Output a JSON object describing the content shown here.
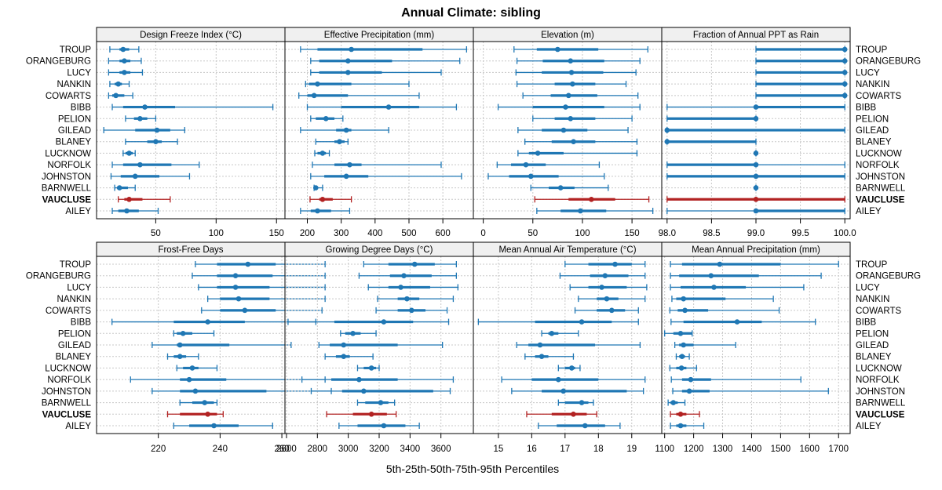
{
  "chart_data": {
    "type": "percentile-dotplot",
    "title": "Annual Climate: sibling",
    "xlabel": "5th-25th-50th-75th-95th Percentiles",
    "grid": true,
    "colors": {
      "default": "#1f77b4",
      "highlight": "#b22222",
      "strip_bg": "#f0f0f0"
    },
    "highlight_series": "VAUCLUSE",
    "series": [
      "TROUP",
      "ORANGEBURG",
      "LUCY",
      "NANKIN",
      "COWARTS",
      "BIBB",
      "PELION",
      "GILEAD",
      "BLANEY",
      "LUCKNOW",
      "NORFOLK",
      "JOHNSTON",
      "BARNWELL",
      "VAUCLUSE",
      "AILEY"
    ],
    "panels": [
      {
        "title": "Design Freeze Index (°C)",
        "row": "top",
        "col": 1,
        "xlim": [
          1,
          157
        ],
        "ticks": [
          50,
          100,
          150
        ],
        "values": [
          [
            12,
            20,
            23,
            28,
            36
          ],
          [
            11,
            20,
            24,
            29,
            38
          ],
          [
            11,
            20,
            24,
            29,
            39
          ],
          [
            12,
            16,
            19,
            22,
            28
          ],
          [
            11,
            14,
            17,
            24,
            31
          ],
          [
            14,
            23,
            41,
            66,
            147
          ],
          [
            25,
            32,
            37,
            43,
            50
          ],
          [
            7,
            33,
            51,
            62,
            74
          ],
          [
            25,
            43,
            50,
            55,
            68
          ],
          [
            23,
            25,
            28,
            31,
            33
          ],
          [
            14,
            23,
            37,
            63,
            86
          ],
          [
            13,
            21,
            33,
            53,
            78
          ],
          [
            16,
            18,
            20,
            27,
            33
          ],
          [
            19,
            24,
            28,
            39,
            62
          ],
          [
            14,
            19,
            26,
            36,
            52
          ]
        ]
      },
      {
        "title": "Effective Precipitation (mm)",
        "row": "top",
        "col": 2,
        "xlim": [
          134,
          690
        ],
        "ticks": [
          200,
          300,
          400,
          500,
          600
        ],
        "values": [
          [
            180,
            230,
            330,
            540,
            670
          ],
          [
            210,
            235,
            320,
            450,
            650
          ],
          [
            210,
            235,
            320,
            420,
            595
          ],
          [
            195,
            205,
            230,
            330,
            500
          ],
          [
            175,
            200,
            220,
            320,
            530
          ],
          [
            200,
            300,
            440,
            530,
            640
          ],
          [
            210,
            225,
            255,
            280,
            305
          ],
          [
            180,
            285,
            315,
            330,
            440
          ],
          [
            225,
            280,
            295,
            310,
            320
          ],
          [
            222,
            230,
            245,
            255,
            265
          ],
          [
            215,
            280,
            325,
            360,
            595
          ],
          [
            210,
            250,
            315,
            380,
            655
          ],
          [
            220,
            222,
            225,
            230,
            245
          ],
          [
            208,
            235,
            245,
            275,
            330
          ],
          [
            180,
            210,
            230,
            270,
            325
          ]
        ]
      },
      {
        "title": "Elevation (m)",
        "row": "top",
        "col": 3,
        "xlim": [
          -10,
          180
        ],
        "ticks": [
          0,
          50,
          100,
          150
        ],
        "values": [
          [
            31,
            54,
            75,
            116,
            166
          ],
          [
            34,
            60,
            88,
            122,
            158
          ],
          [
            33,
            59,
            89,
            121,
            154
          ],
          [
            34,
            72,
            90,
            113,
            144
          ],
          [
            40,
            68,
            86,
            115,
            156
          ],
          [
            15,
            50,
            83,
            122,
            158
          ],
          [
            50,
            72,
            88,
            113,
            150
          ],
          [
            35,
            59,
            81,
            105,
            146
          ],
          [
            42,
            69,
            91,
            113,
            155
          ],
          [
            35,
            46,
            55,
            81,
            155
          ],
          [
            14,
            28,
            43,
            63,
            117
          ],
          [
            5,
            26,
            48,
            76,
            122
          ],
          [
            48,
            66,
            78,
            92,
            126
          ],
          [
            52,
            86,
            109,
            133,
            167
          ],
          [
            54,
            78,
            98,
            124,
            171
          ]
        ]
      },
      {
        "title": "Fraction of Annual PPT as Rain",
        "row": "top",
        "col": 4,
        "xlim": [
          97.94,
          100.06
        ],
        "ticks": [
          98.0,
          98.5,
          99.0,
          99.5,
          100.0
        ],
        "values": [
          [
            99,
            99,
            100,
            100,
            100
          ],
          [
            99,
            99,
            100,
            100,
            100
          ],
          [
            99,
            99,
            100,
            100,
            100
          ],
          [
            99,
            99,
            100,
            100,
            100
          ],
          [
            99,
            99,
            100,
            100,
            100
          ],
          [
            98,
            99,
            99,
            100,
            100
          ],
          [
            98,
            98,
            99,
            99,
            99
          ],
          [
            98,
            98,
            98,
            100,
            100
          ],
          [
            98,
            98,
            98,
            99,
            99
          ],
          [
            99,
            99,
            99,
            99,
            99
          ],
          [
            98,
            98,
            99,
            99,
            100
          ],
          [
            98,
            98,
            99,
            100,
            100
          ],
          [
            99,
            99,
            99,
            99,
            99
          ],
          [
            98,
            98,
            99,
            100,
            100
          ],
          [
            98,
            99,
            99,
            100,
            100
          ]
        ]
      },
      {
        "title": "Frost-Free Days",
        "row": "bottom",
        "col": 1,
        "xlim": [
          200,
          261
        ],
        "ticks": [
          220,
          240,
          260
        ],
        "values": [
          [
            232,
            239,
            249,
            258,
            274
          ],
          [
            231,
            239,
            245,
            257,
            274
          ],
          [
            233,
            239,
            245,
            256,
            274
          ],
          [
            236,
            240,
            246,
            256,
            274
          ],
          [
            234,
            240,
            248,
            258,
            273
          ],
          [
            205,
            225,
            236,
            248,
            271
          ],
          [
            225,
            226,
            228,
            231,
            238
          ],
          [
            218,
            226,
            227,
            243,
            263
          ],
          [
            223,
            225,
            227,
            229,
            233
          ],
          [
            226,
            228,
            231,
            233,
            239
          ],
          [
            211,
            227,
            230,
            242,
            274
          ],
          [
            218,
            227,
            232,
            255,
            276
          ],
          [
            227,
            231,
            235,
            238,
            239
          ],
          [
            223,
            227,
            236,
            239,
            241
          ],
          [
            225,
            230,
            238,
            246,
            257
          ]
        ]
      },
      {
        "title": "Growing Degree Days (°C)",
        "row": "bottom",
        "col": 2,
        "xlim": [
          2590,
          3810
        ],
        "ticks": [
          2600,
          2800,
          3000,
          3200,
          3400,
          3600
        ],
        "values": [
          [
            3100,
            3260,
            3430,
            3560,
            3700
          ],
          [
            3070,
            3270,
            3360,
            3540,
            3700
          ],
          [
            3130,
            3260,
            3340,
            3530,
            3710
          ],
          [
            3190,
            3320,
            3380,
            3460,
            3680
          ],
          [
            3180,
            3320,
            3410,
            3500,
            3640
          ],
          [
            2610,
            2910,
            3230,
            3420,
            3650
          ],
          [
            2950,
            2980,
            3030,
            3080,
            3180
          ],
          [
            2810,
            2880,
            2970,
            3320,
            3610
          ],
          [
            2850,
            2920,
            2970,
            3010,
            3160
          ],
          [
            3060,
            3100,
            3150,
            3180,
            3200
          ],
          [
            2700,
            2890,
            3070,
            3320,
            3680
          ],
          [
            2760,
            2960,
            3100,
            3550,
            3660
          ],
          [
            3060,
            3110,
            3210,
            3260,
            3300
          ],
          [
            2860,
            3030,
            3150,
            3250,
            3310
          ],
          [
            2940,
            3060,
            3230,
            3370,
            3460
          ]
        ]
      },
      {
        "title": "Mean Annual Air Temperature (°C)",
        "row": "bottom",
        "col": 3,
        "xlim": [
          14.25,
          19.9
        ],
        "ticks": [
          15,
          16,
          17,
          18,
          19
        ],
        "values": [
          [
            17.0,
            17.7,
            18.5,
            19.0,
            19.4
          ],
          [
            16.85,
            17.75,
            18.2,
            18.9,
            19.4
          ],
          [
            17.15,
            17.7,
            18.1,
            18.85,
            19.45
          ],
          [
            17.4,
            17.95,
            18.25,
            18.6,
            19.4
          ],
          [
            17.3,
            17.95,
            18.4,
            18.8,
            19.2
          ],
          [
            14.4,
            16.1,
            17.5,
            18.4,
            19.2
          ],
          [
            16.3,
            16.5,
            16.6,
            16.8,
            17.4
          ],
          [
            15.55,
            15.9,
            16.25,
            17.9,
            19.25
          ],
          [
            15.8,
            16.1,
            16.3,
            16.5,
            17.25
          ],
          [
            16.8,
            17.0,
            17.2,
            17.3,
            17.45
          ],
          [
            15.1,
            16.0,
            16.8,
            18.0,
            19.4
          ],
          [
            15.4,
            16.3,
            16.95,
            18.85,
            19.35
          ],
          [
            16.8,
            17.0,
            17.5,
            17.7,
            17.85
          ],
          [
            15.85,
            16.6,
            17.25,
            17.65,
            17.95
          ],
          [
            16.2,
            16.75,
            17.6,
            18.2,
            18.65
          ]
        ]
      },
      {
        "title": "Mean Annual Precipitation (mm)",
        "row": "bottom",
        "col": 4,
        "xlim": [
          1090,
          1740
        ],
        "ticks": [
          1100,
          1200,
          1300,
          1400,
          1500,
          1600,
          1700
        ],
        "values": [
          [
            1120,
            1160,
            1290,
            1500,
            1700
          ],
          [
            1120,
            1150,
            1260,
            1425,
            1640
          ],
          [
            1120,
            1155,
            1270,
            1380,
            1580
          ],
          [
            1125,
            1140,
            1165,
            1310,
            1475
          ],
          [
            1118,
            1145,
            1170,
            1250,
            1495
          ],
          [
            1122,
            1165,
            1350,
            1435,
            1620
          ],
          [
            1100,
            1130,
            1155,
            1195,
            1195
          ],
          [
            1135,
            1150,
            1165,
            1200,
            1345
          ],
          [
            1140,
            1150,
            1160,
            1170,
            1185
          ],
          [
            1118,
            1140,
            1158,
            1175,
            1210
          ],
          [
            1123,
            1160,
            1190,
            1260,
            1570
          ],
          [
            1128,
            1160,
            1185,
            1255,
            1665
          ],
          [
            1112,
            1120,
            1130,
            1145,
            1170
          ],
          [
            1120,
            1140,
            1155,
            1175,
            1220
          ],
          [
            1120,
            1140,
            1155,
            1175,
            1235
          ]
        ]
      }
    ]
  }
}
